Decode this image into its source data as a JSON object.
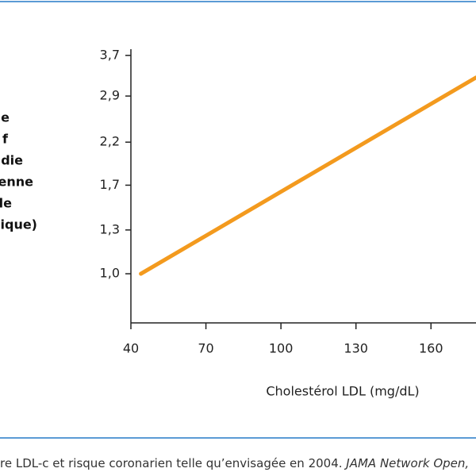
{
  "chart_data": {
    "type": "line",
    "y_label_lines": [
      "e",
      "f",
      "die",
      "enne",
      "le",
      "ique)"
    ],
    "x_label": "Cholestérol LDL (mg/dL)",
    "x": [
      44,
      178
    ],
    "series": [
      {
        "color": "#f39a1e",
        "values": [
          1.0,
          3.24
        ]
      }
    ],
    "xlim": [
      40,
      178
    ],
    "xticks": [
      40,
      70,
      100,
      130,
      160
    ],
    "ylim": [
      0.745,
      3.84
    ],
    "log_y": true,
    "yticks": [
      {
        "value": 1.0,
        "label": "1,0"
      },
      {
        "value": 1.3,
        "label": "1,3"
      },
      {
        "value": 1.7,
        "label": "1,7"
      },
      {
        "value": 2.2,
        "label": "2,2"
      },
      {
        "value": 2.9,
        "label": "2,9"
      },
      {
        "value": 3.7,
        "label": "3,7"
      }
    ]
  },
  "caption": {
    "text": "re LDL-c et risque coronarien telle qu’envisagée en 2004. ",
    "source": "JAMA Network Open,"
  }
}
